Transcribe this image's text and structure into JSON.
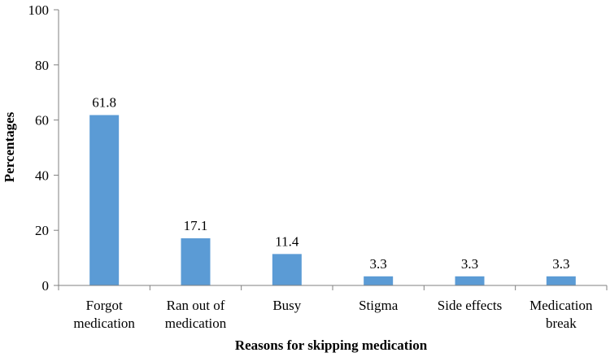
{
  "chart_data": {
    "type": "bar",
    "categories": [
      [
        "Forgot",
        "medication"
      ],
      [
        "Ran out of",
        "medication"
      ],
      [
        "Busy"
      ],
      [
        "Stigma"
      ],
      [
        "Side effects"
      ],
      [
        "Medication",
        "break"
      ]
    ],
    "values": [
      61.8,
      17.1,
      11.4,
      3.3,
      3.3,
      3.3
    ],
    "data_labels": [
      "61.8",
      "17.1",
      "11.4",
      "3.3",
      "3.3",
      "3.3"
    ],
    "title": "",
    "xlabel": "Reasons for skipping medication",
    "ylabel": "Percentages",
    "ylim": [
      0,
      100
    ],
    "yticks": [
      "0",
      "20",
      "40",
      "60",
      "80",
      "100"
    ],
    "grid": false,
    "bar_color": "#5b9bd5"
  }
}
